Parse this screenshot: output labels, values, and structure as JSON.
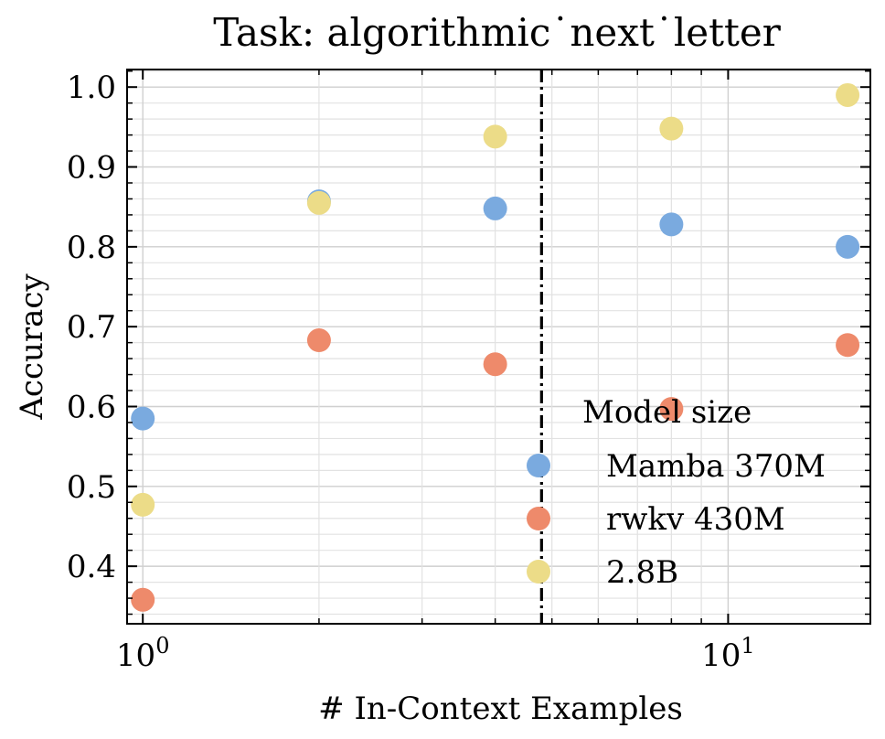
{
  "chart_data": {
    "type": "scatter",
    "title": "Task: algorithmic˙next˙letter",
    "xlabel": "# In-Context Examples",
    "ylabel": "Accuracy",
    "xscale": "log",
    "xlim": [
      0.94,
      17.5
    ],
    "ylim": [
      0.328,
      1.022
    ],
    "x_ticks": [
      {
        "value": 1,
        "base": "10",
        "exp": "0"
      },
      {
        "value": 10,
        "base": "10",
        "exp": "1"
      }
    ],
    "y_ticks": [
      {
        "value": 0.4,
        "label": "0.4"
      },
      {
        "value": 0.5,
        "label": "0.5"
      },
      {
        "value": 0.6,
        "label": "0.6"
      },
      {
        "value": 0.7,
        "label": "0.7"
      },
      {
        "value": 0.8,
        "label": "0.8"
      },
      {
        "value": 0.9,
        "label": "0.9"
      },
      {
        "value": 1.0,
        "label": "1.0"
      }
    ],
    "grid": true,
    "vline": {
      "x": 4.8,
      "style": "dash-dot"
    },
    "legend": {
      "title": "Model size",
      "placement": "lower-right"
    },
    "series": [
      {
        "name": "Mamba 370M",
        "color": "#7aaadf",
        "points": [
          [
            1,
            0.585
          ],
          [
            2,
            0.857
          ],
          [
            4,
            0.848
          ],
          [
            8,
            0.828
          ],
          [
            16,
            0.8
          ]
        ]
      },
      {
        "name": "rwkv 430M",
        "color": "#ee8a6b",
        "points": [
          [
            1,
            0.358
          ],
          [
            2,
            0.683
          ],
          [
            4,
            0.653
          ],
          [
            8,
            0.597
          ],
          [
            16,
            0.677
          ]
        ]
      },
      {
        "name": "2.8B",
        "color": "#ecdc88",
        "points": [
          [
            1,
            0.477
          ],
          [
            2,
            0.855
          ],
          [
            4,
            0.938
          ],
          [
            8,
            0.948
          ],
          [
            16,
            0.99
          ]
        ]
      }
    ]
  }
}
